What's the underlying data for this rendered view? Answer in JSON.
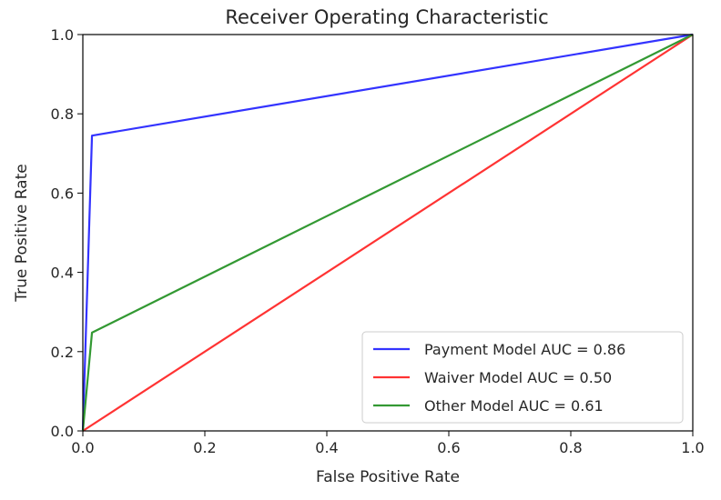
{
  "chart_data": {
    "type": "line",
    "title": "Receiver Operating Characteristic",
    "xlabel": "False Positive Rate",
    "ylabel": "True Positive Rate",
    "xlim": [
      0,
      1
    ],
    "ylim": [
      0,
      1
    ],
    "xticks": [
      "0.0",
      "0.2",
      "0.4",
      "0.6",
      "0.8",
      "1.0"
    ],
    "yticks": [
      "0.0",
      "0.2",
      "0.4",
      "0.6",
      "0.8",
      "1.0"
    ],
    "grid": false,
    "legend_position": "lower-right",
    "series": [
      {
        "name": "Payment Model AUC = 0.86",
        "color": "#3333ff",
        "x": [
          0,
          0.015,
          1
        ],
        "y": [
          0,
          0.745,
          1
        ]
      },
      {
        "name": "Waiver Model AUC = 0.50",
        "color": "#ff3333",
        "x": [
          0,
          1
        ],
        "y": [
          0,
          1
        ]
      },
      {
        "name": "Other Model AUC = 0.61",
        "color": "#339933",
        "x": [
          0,
          0.015,
          1
        ],
        "y": [
          0,
          0.248,
          1
        ]
      }
    ]
  }
}
